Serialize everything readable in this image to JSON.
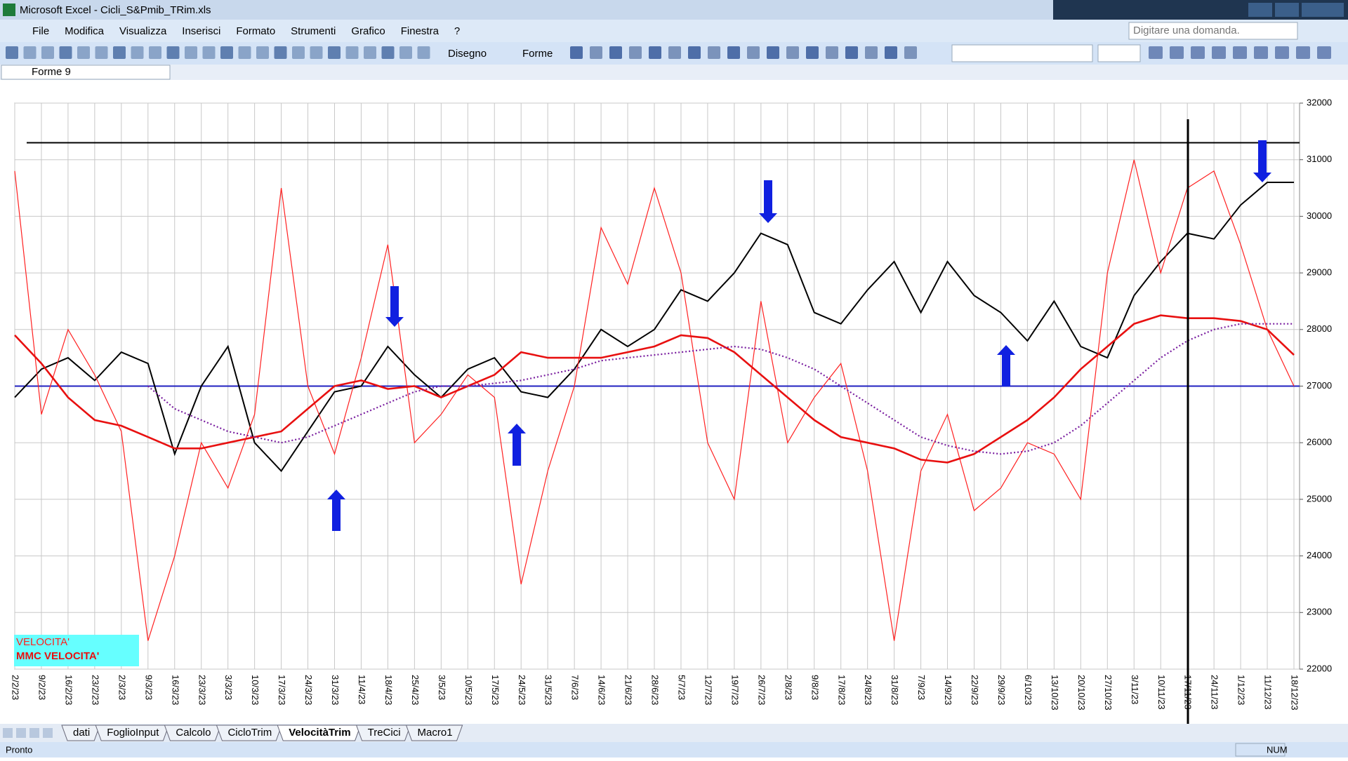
{
  "window": {
    "title": "Microsoft Excel - Cicli_S&Pmib_TRim.xls"
  },
  "menu": [
    "File",
    "Modifica",
    "Visualizza",
    "Inserisci",
    "Formato",
    "Strumenti",
    "Grafico",
    "Finestra",
    "?"
  ],
  "help_box": "Digitare una domanda.",
  "toolbar": {
    "drawing": "Disegno",
    "shapes": "Forme"
  },
  "name_box": "Forme 9",
  "chart_data": {
    "type": "line",
    "categories": [
      "2/2/23",
      "9/2/23",
      "16/2/23",
      "23/2/23",
      "2/3/23",
      "9/3/23",
      "16/3/23",
      "23/3/23",
      "3/3/23",
      "10/3/23",
      "17/3/23",
      "24/3/23",
      "31/3/23",
      "11/4/23",
      "18/4/23",
      "25/4/23",
      "3/5/23",
      "10/5/23",
      "17/5/23",
      "24/5/23",
      "31/5/23",
      "7/6/23",
      "14/6/23",
      "21/6/23",
      "28/6/23",
      "5/7/23",
      "12/7/23",
      "19/7/23",
      "26/7/23",
      "2/8/23",
      "9/8/23",
      "17/8/23",
      "24/8/23",
      "31/8/23",
      "7/9/23",
      "14/9/23",
      "22/9/23",
      "29/9/23",
      "6/10/23",
      "13/10/23",
      "20/10/23",
      "27/10/23",
      "3/11/23",
      "10/11/23",
      "17/11/23",
      "24/11/23",
      "1/12/23",
      "11/12/23",
      "18/12/23"
    ],
    "series": [
      {
        "color": "#000000",
        "values": [
          26800,
          27300,
          27500,
          27100,
          27600,
          27400,
          25800,
          27000,
          27700,
          26000,
          25500,
          26200,
          26900,
          27000,
          27700,
          27200,
          26800,
          27300,
          27500,
          26900,
          26800,
          27300,
          28000,
          27700,
          28000,
          28700,
          28500,
          29000,
          29700,
          29500,
          28300,
          28100,
          28700,
          29200,
          28300,
          29200,
          28600,
          28300,
          27800,
          28500,
          27700,
          27500,
          28600,
          29200,
          29700,
          29600,
          30200,
          30600,
          30600
        ]
      },
      {
        "name": "VELOCITA'",
        "color": "#ff2020",
        "values": [
          30800,
          26500,
          28000,
          27200,
          26200,
          22500,
          24000,
          26000,
          25200,
          26500,
          30500,
          27000,
          25800,
          27500,
          29500,
          26000,
          26500,
          27200,
          26800,
          23500,
          25500,
          27000,
          29800,
          28800,
          30500,
          29000,
          26000,
          25000,
          28500,
          26000,
          26800,
          27400,
          25500,
          22500,
          25500,
          26500,
          24800,
          25200,
          26000,
          25800,
          25000,
          29000,
          31000,
          29000,
          30500,
          30800,
          29500,
          28000,
          27000
        ]
      },
      {
        "name": "MMC VELOCITA'",
        "color": "#e81010",
        "values": [
          27900,
          27400,
          26800,
          26400,
          26300,
          26100,
          25900,
          25900,
          26000,
          26100,
          26200,
          26600,
          27000,
          27100,
          26950,
          27000,
          26800,
          27000,
          27200,
          27600,
          27500,
          27500,
          27500,
          27600,
          27700,
          27900,
          27850,
          27600,
          27200,
          26800,
          26400,
          26100,
          26000,
          25900,
          25700,
          25650,
          25800,
          26100,
          26400,
          26800,
          27300,
          27700,
          28100,
          28250,
          28200,
          28200,
          28150,
          28000,
          27550
        ]
      },
      {
        "color": "#7a1fa0",
        "values": [
          null,
          null,
          null,
          null,
          null,
          27000,
          26600,
          26400,
          26200,
          26100,
          26000,
          26100,
          26300,
          26500,
          26700,
          26900,
          27000,
          27000,
          27050,
          27100,
          27200,
          27300,
          27450,
          27500,
          27550,
          27600,
          27650,
          27700,
          27650,
          27500,
          27300,
          27000,
          26700,
          26400,
          26100,
          25950,
          25850,
          25800,
          25850,
          26000,
          26300,
          26700,
          27100,
          27500,
          27800,
          28000,
          28100,
          28100,
          28100
        ]
      }
    ],
    "hlines": [
      {
        "value": 31300,
        "color": "#000000"
      },
      {
        "value": 27000,
        "color": "#2020c0"
      }
    ],
    "ylim": [
      22000,
      32000
    ],
    "yticks": [
      22000,
      23000,
      24000,
      25000,
      26000,
      27000,
      28000,
      29000,
      30000,
      31000,
      32000
    ],
    "grid": true
  },
  "sheet_tabs": [
    "dati",
    "FoglioInput",
    "Calcolo",
    "CicloTrim",
    "VelocitàTrim",
    "TreCici",
    "Macro1"
  ],
  "status": {
    "ready": "Pronto",
    "num": "NUM"
  }
}
